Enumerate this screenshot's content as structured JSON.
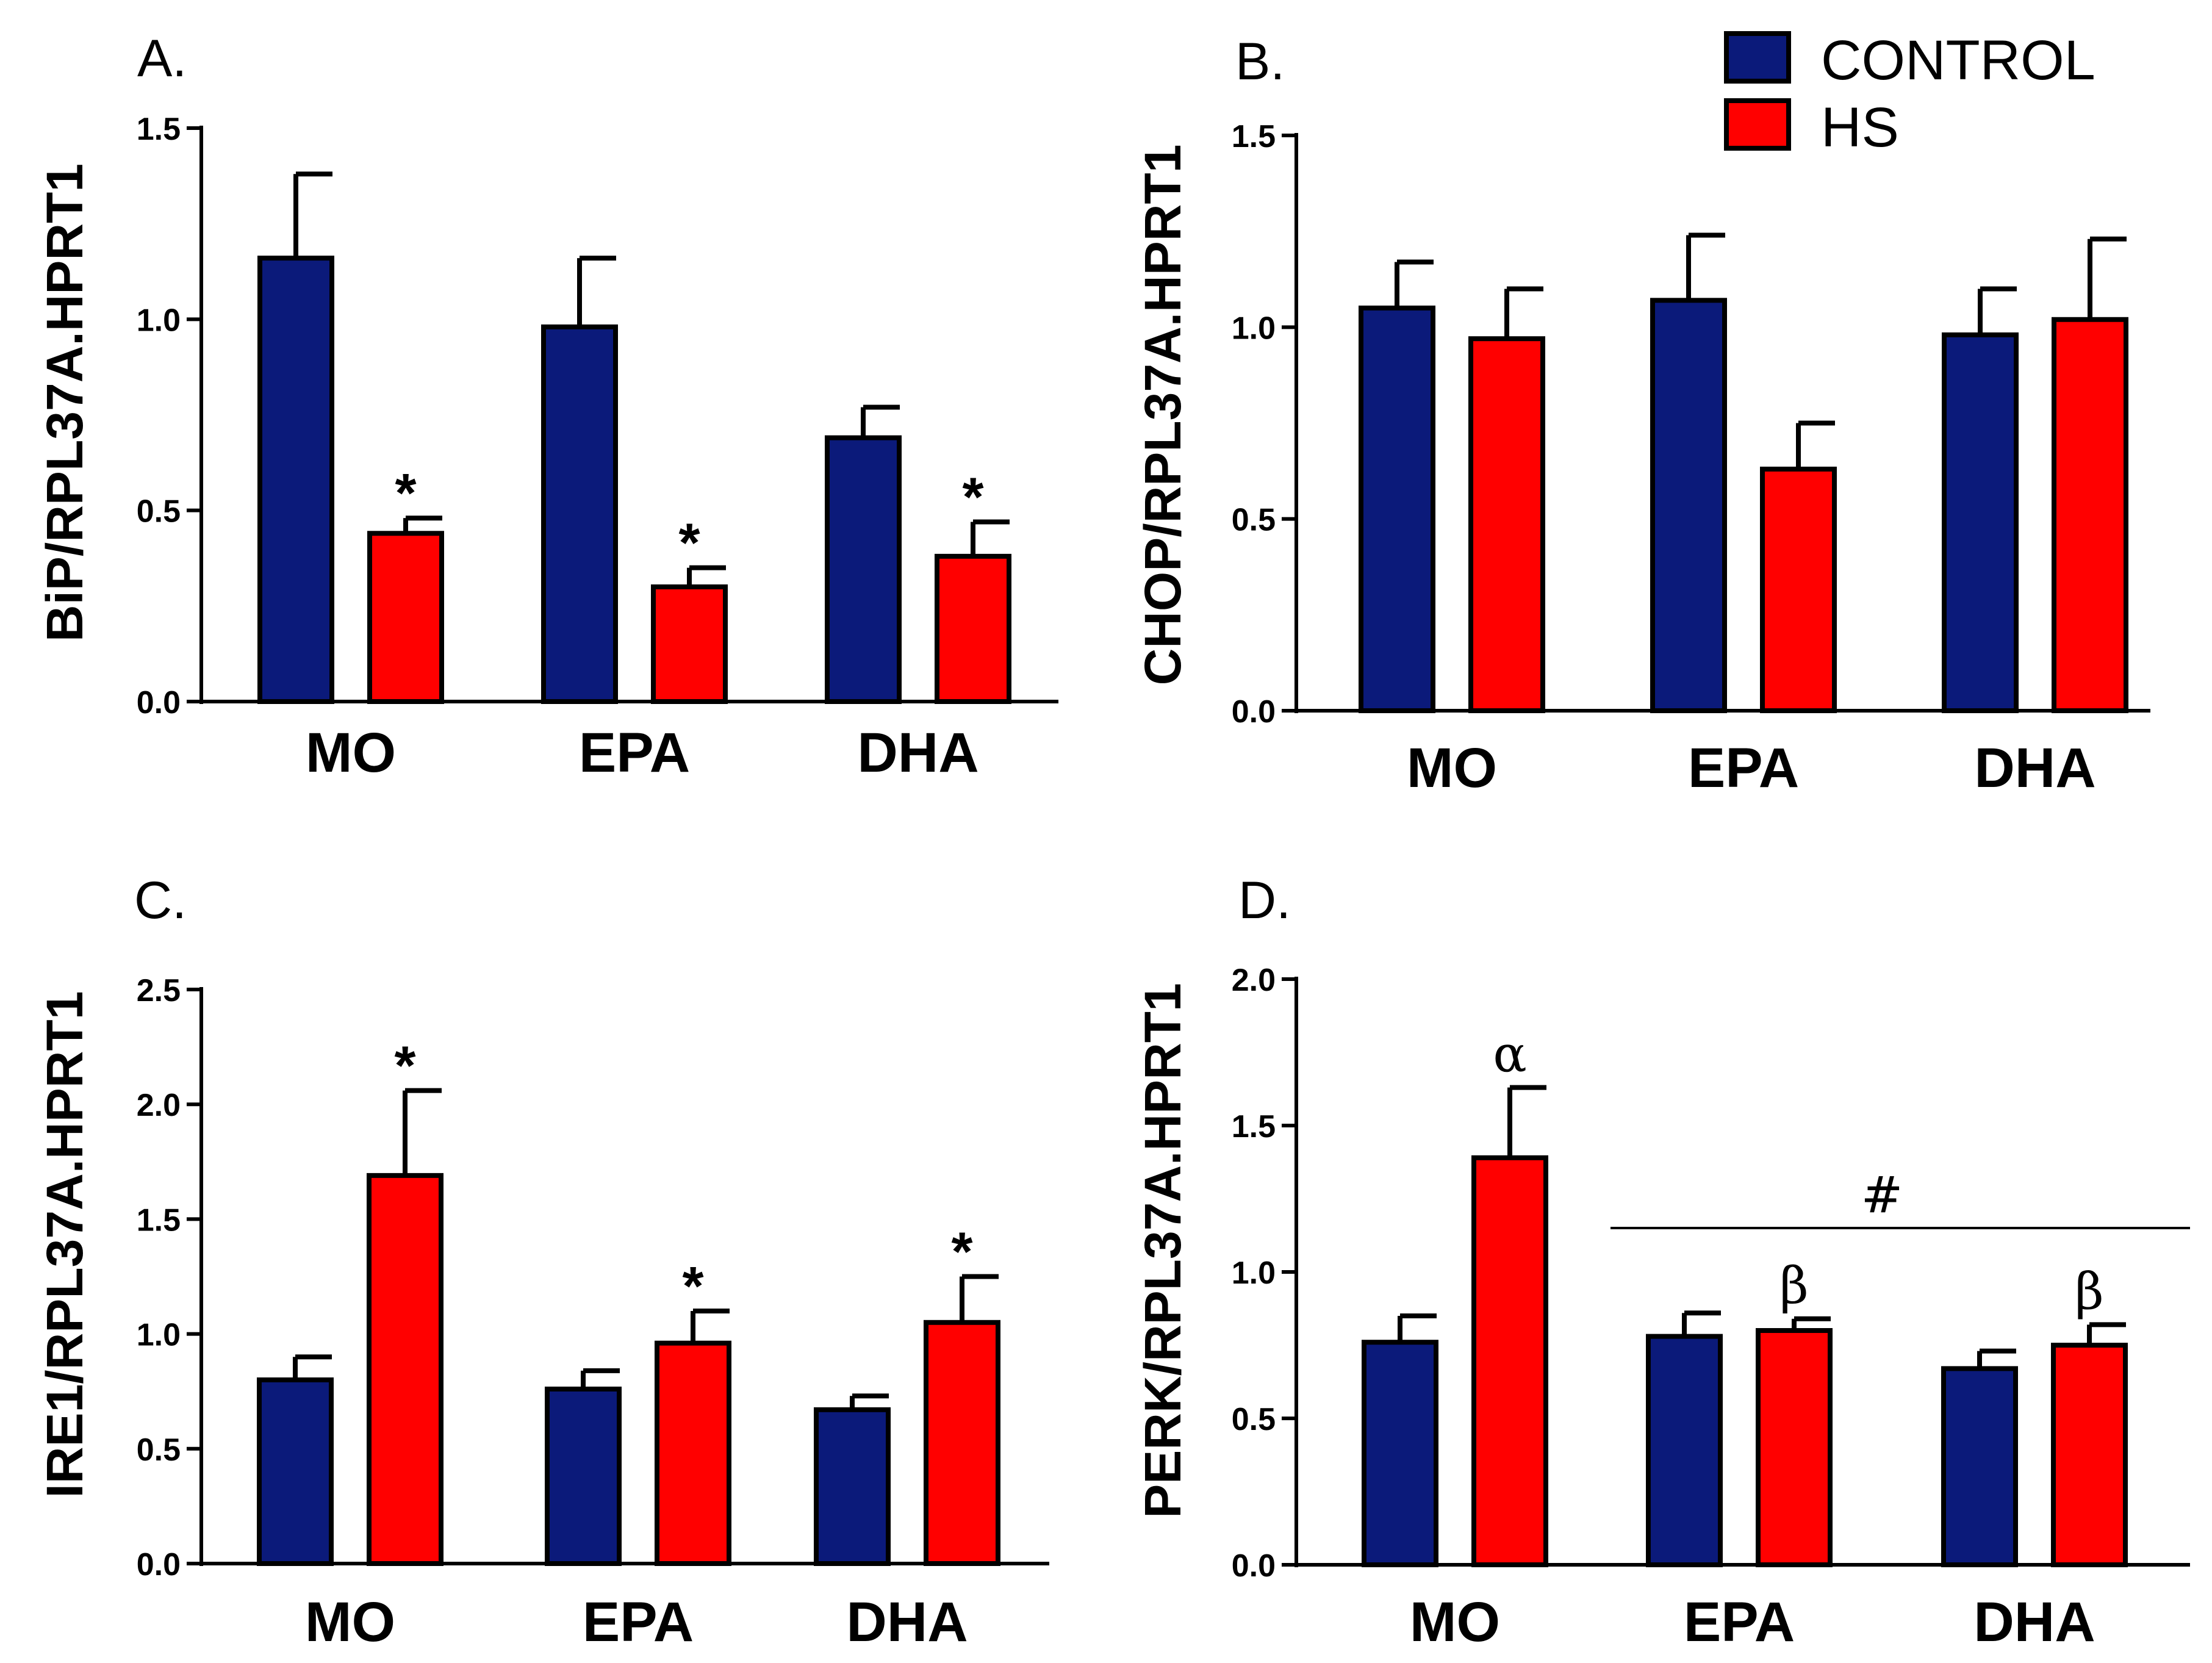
{
  "colors": {
    "control": "#0b1a7a",
    "hs": "#ff0000",
    "axis": "#000000"
  },
  "legend": [
    {
      "series": "control",
      "label": "CONTROL"
    },
    {
      "series": "hs",
      "label": "HS"
    }
  ],
  "chart_data": [
    {
      "id": "A",
      "type": "bar",
      "panel_label": "A.",
      "categories": [
        "MO",
        "EPA",
        "DHA"
      ],
      "ylabel": "BiP/RPL37A.HPRT1",
      "ylim": [
        0,
        1.5
      ],
      "yticks": [
        "0.0",
        "0.5",
        "1.0",
        "1.5"
      ],
      "ytick_values": [
        0,
        0.5,
        1.0,
        1.5
      ],
      "series": [
        {
          "name": "CONTROL",
          "key": "control",
          "values": [
            1.16,
            0.98,
            0.69
          ],
          "err": [
            0.22,
            0.18,
            0.08
          ],
          "annotations": [
            "",
            "",
            ""
          ]
        },
        {
          "name": "HS",
          "key": "hs",
          "values": [
            0.44,
            0.3,
            0.38
          ],
          "err": [
            0.04,
            0.05,
            0.09
          ],
          "annotations": [
            "*",
            "*",
            "*"
          ]
        }
      ],
      "group_annotation": null
    },
    {
      "id": "B",
      "type": "bar",
      "panel_label": "B.",
      "categories": [
        "MO",
        "EPA",
        "DHA"
      ],
      "ylabel": "CHOP/RPL37A.HPRT1",
      "ylim": [
        0,
        1.5
      ],
      "yticks": [
        "0.0",
        "0.5",
        "1.0",
        "1.5"
      ],
      "ytick_values": [
        0,
        0.5,
        1.0,
        1.5
      ],
      "series": [
        {
          "name": "CONTROL",
          "key": "control",
          "values": [
            1.05,
            1.07,
            0.98
          ],
          "err": [
            0.12,
            0.17,
            0.12
          ],
          "annotations": [
            "",
            "",
            ""
          ]
        },
        {
          "name": "HS",
          "key": "hs",
          "values": [
            0.97,
            0.63,
            1.02
          ],
          "err": [
            0.13,
            0.12,
            0.21
          ],
          "annotations": [
            "",
            "",
            ""
          ]
        }
      ],
      "group_annotation": null
    },
    {
      "id": "C",
      "type": "bar",
      "panel_label": "C.",
      "categories": [
        "MO",
        "EPA",
        "DHA"
      ],
      "ylabel": "IRE1/RPL37A.HPRT1",
      "ylim": [
        0,
        2.5
      ],
      "yticks": [
        "0.0",
        "0.5",
        "1.0",
        "1.5",
        "2.0",
        "2.5"
      ],
      "ytick_values": [
        0,
        0.5,
        1.0,
        1.5,
        2.0,
        2.5
      ],
      "series": [
        {
          "name": "CONTROL",
          "key": "control",
          "values": [
            0.8,
            0.76,
            0.67
          ],
          "err": [
            0.1,
            0.08,
            0.06
          ],
          "annotations": [
            "",
            "",
            ""
          ]
        },
        {
          "name": "HS",
          "key": "hs",
          "values": [
            1.69,
            0.96,
            1.05
          ],
          "err": [
            0.37,
            0.14,
            0.2
          ],
          "annotations": [
            "*",
            "*",
            "*"
          ]
        }
      ],
      "group_annotation": null
    },
    {
      "id": "D",
      "type": "bar",
      "panel_label": "D.",
      "categories": [
        "MO",
        "EPA",
        "DHA"
      ],
      "ylabel": "PERK/RPL37A.HPRT1",
      "ylim": [
        0,
        2.0
      ],
      "yticks": [
        "0.0",
        "0.5",
        "1.0",
        "1.5",
        "2.0"
      ],
      "ytick_values": [
        0,
        0.5,
        1.0,
        1.5,
        2.0
      ],
      "series": [
        {
          "name": "CONTROL",
          "key": "control",
          "values": [
            0.76,
            0.78,
            0.67
          ],
          "err": [
            0.09,
            0.08,
            0.06
          ],
          "annotations": [
            "",
            "",
            ""
          ]
        },
        {
          "name": "HS",
          "key": "hs",
          "values": [
            1.39,
            0.8,
            0.75
          ],
          "err": [
            0.24,
            0.04,
            0.07
          ],
          "annotations": [
            "α",
            "β",
            "β"
          ]
        }
      ],
      "group_annotation": {
        "label": "#",
        "spans": [
          "EPA",
          "DHA"
        ],
        "y": 1.15
      }
    }
  ]
}
